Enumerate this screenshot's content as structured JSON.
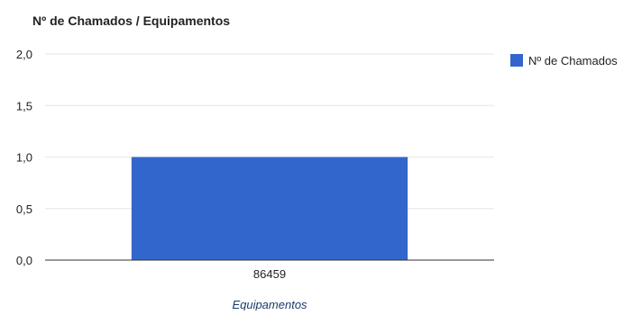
{
  "chart_data": {
    "type": "bar",
    "title": "Nº de Chamados / Equipamentos",
    "xlabel": "Equipamentos",
    "ylabel": "",
    "categories": [
      "86459"
    ],
    "series": [
      {
        "name": "Nº de Chamados",
        "values": [
          1
        ]
      }
    ],
    "ylim": [
      0,
      2
    ],
    "yticks": [
      0,
      0.5,
      1,
      1.5,
      2
    ],
    "ytick_labels": [
      "0,0",
      "0,5",
      "1,0",
      "1,5",
      "2,0"
    ],
    "grid": true,
    "legend_position": "right",
    "colors": {
      "bar": "#3366cc",
      "grid": "#e6e6e6",
      "axis": "#333333",
      "text": "#222222",
      "xlabel": "#1a3a6b"
    }
  }
}
